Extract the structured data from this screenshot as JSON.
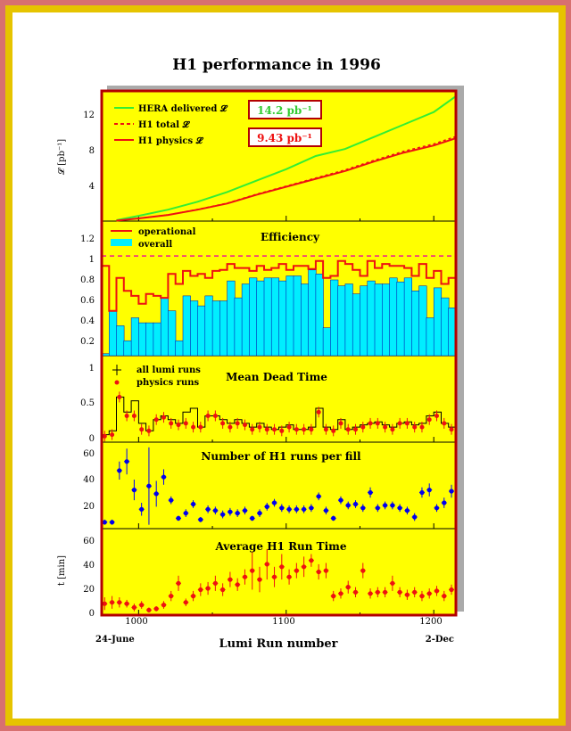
{
  "page": {
    "title": "H1 performance in 1996",
    "x_axis_title": "Lumi Run number",
    "date_start": "24-June",
    "date_end": "2-Dec",
    "x_ticks": [
      "1000",
      "1100",
      "1200"
    ]
  },
  "colors": {
    "panel_bg": "#ffff00",
    "frame_red": "#b30000",
    "hera_green": "#33ee33",
    "h1_red": "#ee1111",
    "eff_cyan": "#00eeff",
    "points_blue": "#0000ee",
    "points_red": "#ee1111",
    "dashed_magenta": "#ee1199"
  },
  "panels": {
    "luminosity": {
      "ylabel": "𝓛 [pb⁻¹]",
      "y_ticks": [
        "4",
        "8",
        "12"
      ],
      "legend": [
        "HERA delivered 𝓛",
        "H1 total 𝓛",
        "H1 physics 𝓛"
      ],
      "box_hera": "14.2 pb⁻¹",
      "box_h1": "9.43 pb⁻¹"
    },
    "efficiency": {
      "title": "Efficiency",
      "y_ticks": [
        "0.2",
        "0.4",
        "0.6",
        "0.8",
        "1",
        "1.2"
      ],
      "legend": [
        "operational",
        "overall"
      ]
    },
    "deadtime": {
      "title": "Mean Dead Time",
      "y_ticks": [
        "0",
        "0.5",
        "1"
      ],
      "legend": [
        "all lumi runs",
        "physics runs"
      ]
    },
    "runs_per_fill": {
      "title": "Number of H1 runs per fill",
      "y_ticks": [
        "20",
        "40",
        "60"
      ]
    },
    "run_time": {
      "title": "Average H1 Run Time",
      "ylabel": "t [min]",
      "y_ticks": [
        "0",
        "20",
        "40",
        "60"
      ]
    }
  },
  "chart_data": [
    {
      "type": "line",
      "title": "",
      "xlabel": "Lumi Run number",
      "ylabel": "𝓛 [pb⁻¹]",
      "xlim": [
        975,
        1215
      ],
      "ylim": [
        0,
        14.8
      ],
      "series": [
        {
          "name": "HERA delivered 𝓛",
          "x": [
            985,
            1000,
            1020,
            1040,
            1060,
            1080,
            1100,
            1120,
            1140,
            1160,
            1180,
            1200,
            1215
          ],
          "y": [
            0.1,
            0.6,
            1.3,
            2.2,
            3.3,
            4.6,
            5.9,
            7.4,
            8.2,
            9.6,
            11.0,
            12.4,
            14.2
          ]
        },
        {
          "name": "H1 physics 𝓛",
          "x": [
            985,
            1000,
            1020,
            1040,
            1060,
            1080,
            1100,
            1120,
            1140,
            1160,
            1180,
            1200,
            1215
          ],
          "y": [
            0.05,
            0.3,
            0.7,
            1.3,
            2.0,
            3.0,
            3.9,
            4.8,
            5.7,
            6.8,
            7.8,
            8.6,
            9.43
          ]
        }
      ]
    },
    {
      "type": "bar",
      "title": "Efficiency",
      "xlim": [
        975,
        1215
      ],
      "ylim": [
        0,
        1.35
      ],
      "bin_width": 5,
      "series": [
        {
          "name": "operational",
          "x": [
            975,
            980,
            985,
            990,
            995,
            1000,
            1005,
            1010,
            1015,
            1020,
            1025,
            1030,
            1035,
            1040,
            1045,
            1050,
            1055,
            1060,
            1065,
            1070,
            1075,
            1080,
            1085,
            1090,
            1095,
            1100,
            1105,
            1110,
            1115,
            1120,
            1125,
            1130,
            1135,
            1140,
            1145,
            1150,
            1155,
            1160,
            1165,
            1170,
            1175,
            1180,
            1185,
            1190,
            1195,
            1200,
            1205,
            1210
          ],
          "y": [
            0.9,
            0.45,
            0.78,
            0.65,
            0.6,
            0.52,
            0.62,
            0.6,
            0.58,
            0.82,
            0.72,
            0.85,
            0.8,
            0.82,
            0.78,
            0.85,
            0.86,
            0.92,
            0.88,
            0.88,
            0.85,
            0.9,
            0.86,
            0.88,
            0.92,
            0.86,
            0.9,
            0.9,
            0.87,
            0.95,
            0.78,
            0.8,
            0.95,
            0.92,
            0.86,
            0.8,
            0.95,
            0.88,
            0.92,
            0.9,
            0.9,
            0.88,
            0.8,
            0.92,
            0.78,
            0.85,
            0.72,
            0.78
          ]
        },
        {
          "name": "overall",
          "x": [
            975,
            980,
            985,
            990,
            995,
            1000,
            1005,
            1010,
            1015,
            1020,
            1025,
            1030,
            1035,
            1040,
            1045,
            1050,
            1055,
            1060,
            1065,
            1070,
            1075,
            1080,
            1085,
            1090,
            1095,
            1100,
            1105,
            1110,
            1115,
            1120,
            1125,
            1130,
            1135,
            1140,
            1145,
            1150,
            1155,
            1160,
            1165,
            1170,
            1175,
            1180,
            1185,
            1190,
            1195,
            1200,
            1205,
            1210
          ],
          "y": [
            0.02,
            0.45,
            0.3,
            0.15,
            0.38,
            0.33,
            0.33,
            0.33,
            0.58,
            0.45,
            0.15,
            0.6,
            0.55,
            0.5,
            0.6,
            0.55,
            0.55,
            0.75,
            0.58,
            0.72,
            0.78,
            0.75,
            0.78,
            0.78,
            0.75,
            0.8,
            0.8,
            0.72,
            0.86,
            0.82,
            0.28,
            0.76,
            0.7,
            0.72,
            0.62,
            0.7,
            0.75,
            0.72,
            0.72,
            0.78,
            0.74,
            0.78,
            0.65,
            0.7,
            0.38,
            0.68,
            0.58,
            0.48
          ]
        },
        {
          "name": "",
          "type": "reference",
          "y": 1.0
        }
      ]
    },
    {
      "type": "scatter",
      "title": "Mean Dead Time",
      "xlim": [
        975,
        1215
      ],
      "ylim": [
        -0.05,
        1.1
      ],
      "series": [
        {
          "name": "all lumi runs",
          "type": "step",
          "x": [
            975,
            980,
            985,
            990,
            995,
            1000,
            1005,
            1010,
            1015,
            1020,
            1025,
            1030,
            1035,
            1040,
            1045,
            1050,
            1055,
            1060,
            1065,
            1070,
            1075,
            1080,
            1085,
            1090,
            1095,
            1100,
            1105,
            1110,
            1115,
            1120,
            1125,
            1130,
            1135,
            1140,
            1145,
            1150,
            1155,
            1160,
            1165,
            1170,
            1175,
            1180,
            1185,
            1190,
            1195,
            1200,
            1205,
            1210
          ],
          "y": [
            0.05,
            0.1,
            0.55,
            0.35,
            0.5,
            0.2,
            0.1,
            0.25,
            0.3,
            0.25,
            0.2,
            0.35,
            0.4,
            0.15,
            0.3,
            0.3,
            0.25,
            0.2,
            0.25,
            0.2,
            0.15,
            0.2,
            0.15,
            0.12,
            0.15,
            0.18,
            0.12,
            0.12,
            0.15,
            0.4,
            0.15,
            0.12,
            0.25,
            0.12,
            0.15,
            0.18,
            0.2,
            0.22,
            0.18,
            0.15,
            0.2,
            0.22,
            0.18,
            0.2,
            0.3,
            0.35,
            0.2,
            0.15
          ]
        },
        {
          "name": "physics runs",
          "x": [
            977,
            982,
            987,
            992,
            997,
            1002,
            1007,
            1012,
            1017,
            1022,
            1027,
            1032,
            1037,
            1042,
            1047,
            1052,
            1057,
            1062,
            1067,
            1072,
            1077,
            1082,
            1087,
            1092,
            1097,
            1102,
            1107,
            1112,
            1117,
            1122,
            1127,
            1132,
            1137,
            1142,
            1147,
            1152,
            1157,
            1162,
            1167,
            1172,
            1177,
            1182,
            1187,
            1192,
            1197,
            1202,
            1207,
            1212
          ],
          "y": [
            0.03,
            0.05,
            0.55,
            0.3,
            0.3,
            0.12,
            0.1,
            0.25,
            0.28,
            0.2,
            0.18,
            0.2,
            0.15,
            0.15,
            0.3,
            0.3,
            0.2,
            0.15,
            0.2,
            0.18,
            0.12,
            0.15,
            0.12,
            0.12,
            0.1,
            0.15,
            0.12,
            0.12,
            0.12,
            0.35,
            0.12,
            0.1,
            0.2,
            0.12,
            0.12,
            0.15,
            0.2,
            0.2,
            0.15,
            0.12,
            0.2,
            0.2,
            0.15,
            0.15,
            0.25,
            0.3,
            0.2,
            0.12
          ]
        }
      ]
    },
    {
      "type": "scatter",
      "title": "Number of H1 runs per fill",
      "xlim": [
        975,
        1215
      ],
      "ylim": [
        0,
        67
      ],
      "series": [
        {
          "name": "",
          "x": [
            977,
            982,
            987,
            992,
            997,
            1002,
            1007,
            1012,
            1017,
            1022,
            1027,
            1032,
            1037,
            1042,
            1047,
            1052,
            1057,
            1062,
            1067,
            1072,
            1077,
            1082,
            1087,
            1092,
            1097,
            1102,
            1107,
            1112,
            1117,
            1122,
            1127,
            1132,
            1137,
            1142,
            1147,
            1152,
            1157,
            1162,
            1167,
            1172,
            1177,
            1182,
            1187,
            1192,
            1197,
            1202,
            1207,
            1212
          ],
          "y": [
            5,
            5,
            45,
            52,
            30,
            15,
            33,
            27,
            40,
            22,
            8,
            12,
            19,
            7,
            15,
            14,
            11,
            13,
            12,
            14,
            8,
            12,
            17,
            20,
            16,
            15,
            15,
            15,
            16,
            25,
            14,
            8,
            22,
            18,
            19,
            16,
            28,
            16,
            18,
            18,
            16,
            14,
            9,
            28,
            30,
            16,
            20,
            29
          ],
          "err": [
            2,
            2,
            7,
            10,
            8,
            5,
            30,
            10,
            6,
            3,
            2,
            3,
            3,
            2,
            3,
            3,
            3,
            3,
            3,
            3,
            2,
            3,
            3,
            3,
            3,
            3,
            3,
            3,
            3,
            3,
            3,
            2,
            3,
            3,
            3,
            3,
            4,
            3,
            3,
            3,
            3,
            3,
            3,
            4,
            5,
            3,
            4,
            5
          ]
        }
      ]
    },
    {
      "type": "scatter",
      "title": "Average H1 Run Time",
      "ylabel": "t [min]",
      "xlim": [
        975,
        1215
      ],
      "ylim": [
        0,
        68
      ],
      "series": [
        {
          "name": "",
          "x": [
            977,
            982,
            987,
            992,
            997,
            1002,
            1007,
            1012,
            1017,
            1022,
            1027,
            1032,
            1037,
            1042,
            1047,
            1052,
            1057,
            1062,
            1067,
            1072,
            1077,
            1082,
            1087,
            1092,
            1097,
            1102,
            1107,
            1112,
            1117,
            1122,
            1127,
            1132,
            1137,
            1142,
            1147,
            1152,
            1157,
            1162,
            1167,
            1172,
            1177,
            1182,
            1187,
            1192,
            1197,
            1202,
            1207,
            1212
          ],
          "y": [
            9,
            10,
            10,
            9,
            6,
            8,
            4,
            5,
            8,
            15,
            25,
            10,
            15,
            20,
            21,
            25,
            20,
            28,
            24,
            30,
            35,
            28,
            40,
            30,
            38,
            30,
            35,
            38,
            43,
            34,
            35,
            15,
            17,
            22,
            18,
            35,
            17,
            18,
            18,
            25,
            18,
            16,
            18,
            15,
            17,
            19,
            15,
            20
          ],
          "err": [
            5,
            5,
            4,
            3,
            3,
            3,
            2,
            2,
            3,
            4,
            6,
            3,
            4,
            5,
            5,
            6,
            5,
            6,
            5,
            6,
            15,
            10,
            12,
            8,
            10,
            6,
            6,
            8,
            5,
            6,
            6,
            4,
            4,
            5,
            4,
            6,
            4,
            4,
            4,
            6,
            4,
            4,
            4,
            4,
            4,
            4,
            4,
            4
          ]
        }
      ]
    }
  ]
}
